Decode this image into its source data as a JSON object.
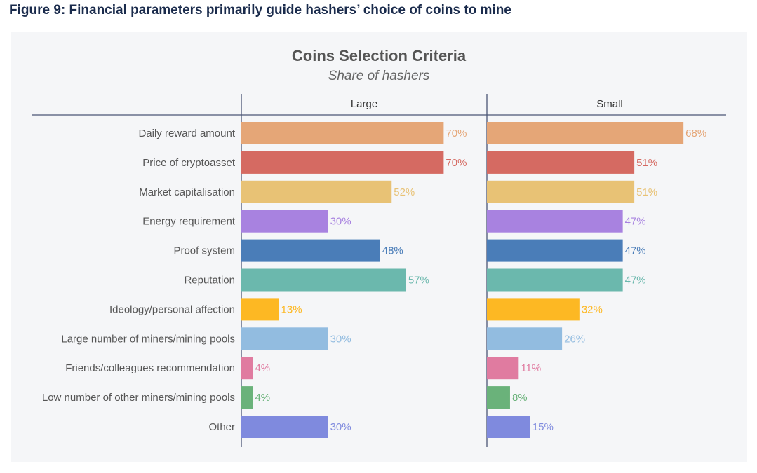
{
  "figure_title": "Figure 9: Financial parameters primarily guide hashers’ choice of coins to mine",
  "chart_data": {
    "type": "bar",
    "orientation": "horizontal",
    "title": "Coins Selection Criteria",
    "subtitle": "Share of hashers",
    "categories": [
      "Daily reward amount",
      "Price of cryptoasset",
      "Market capitalisation",
      "Energy requirement",
      "Proof system",
      "Reputation",
      "Ideology/personal affection",
      "Large number of miners/mining pools",
      "Friends/colleagues recommendation",
      "Low number of other miners/mining pools",
      "Other"
    ],
    "colors": [
      "#e5a677",
      "#d56a62",
      "#e8c275",
      "#a882e0",
      "#4a7db8",
      "#6bb8ad",
      "#fdb823",
      "#92bce0",
      "#e07ba0",
      "#6ab27a",
      "#7f8ade"
    ],
    "series": [
      {
        "name": "Large",
        "values": [
          70,
          70,
          52,
          30,
          48,
          57,
          13,
          30,
          4,
          4,
          30
        ],
        "labels": [
          "70%",
          "70%",
          "52%",
          "30%",
          "48%",
          "57%",
          "13%",
          "30%",
          "4%",
          "4%",
          "30%"
        ]
      },
      {
        "name": "Small",
        "values": [
          68,
          51,
          51,
          47,
          47,
          47,
          32,
          26,
          11,
          8,
          15
        ],
        "labels": [
          "68%",
          "51%",
          "51%",
          "47%",
          "47%",
          "47%",
          "32%",
          "26%",
          "11%",
          "8%",
          "15%"
        ]
      }
    ],
    "xlim": [
      0,
      80
    ],
    "grid": false,
    "legend": "none"
  }
}
